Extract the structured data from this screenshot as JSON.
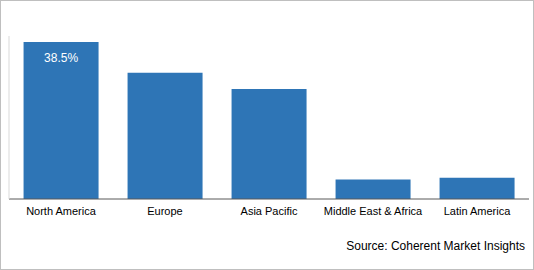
{
  "chart_data": {
    "type": "bar",
    "categories": [
      "North America",
      "Europe",
      "Asia Pacific",
      "Middle East & Africa",
      "Latin America"
    ],
    "values": [
      38.5,
      31.0,
      27.0,
      4.8,
      5.2
    ],
    "value_labels": [
      "38.5%",
      null,
      null,
      null,
      null
    ],
    "data_labels": true,
    "color": "#2e75b6",
    "ylim": [
      0,
      40
    ],
    "tick_labels": "x",
    "grid": false,
    "source": "Source: Coherent Market Insights"
  }
}
